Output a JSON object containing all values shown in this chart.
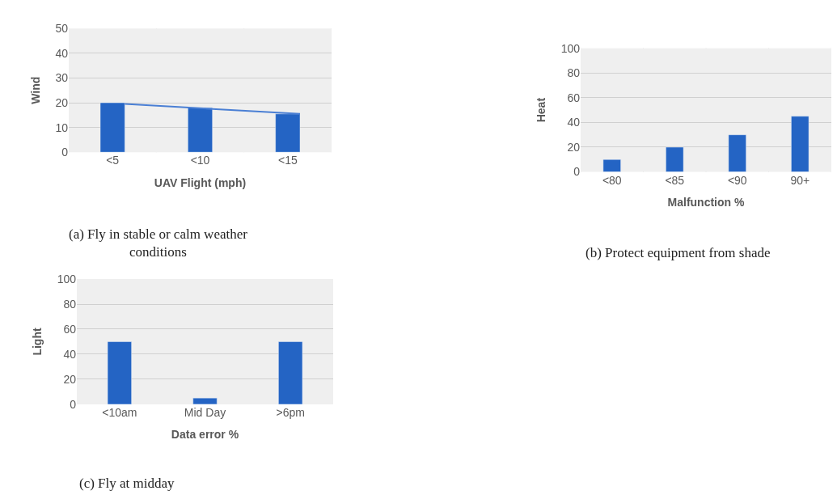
{
  "chart_data": [
    {
      "type": "bar",
      "xlabel": "UAV Flight (mph)",
      "ylabel": "Wind",
      "categories": [
        "<5",
        "<10",
        "<15"
      ],
      "series": [
        {
          "color": "#2464c4",
          "values": [
            20,
            18,
            15.5
          ]
        },
        {
          "type": "line",
          "color": "#4a7fd4",
          "values": [
            19.5,
            17.5,
            15.5
          ]
        }
      ],
      "ylim": [
        0,
        50
      ],
      "yticks": [
        0,
        10,
        20,
        30,
        40,
        50
      ],
      "grid": true,
      "annotations": [
        "(a) Fly in stable or calm weather conditions"
      ]
    },
    {
      "type": "bar",
      "xlabel": "Malfunction %",
      "ylabel": "Heat",
      "categories": [
        "<80",
        "<85",
        "<90",
        "90+"
      ],
      "series": [
        {
          "color": "#2464c4",
          "values": [
            10,
            20,
            30,
            45
          ]
        }
      ],
      "ylim": [
        0,
        100
      ],
      "yticks": [
        0,
        20,
        40,
        60,
        80,
        100
      ],
      "grid": true,
      "annotations": [
        "(b) Protect equipment from shade"
      ]
    },
    {
      "type": "bar",
      "xlabel": "Data error %",
      "ylabel": "Light",
      "categories": [
        "<10am",
        "Mid Day",
        ">6pm"
      ],
      "series": [
        {
          "color": "#2464c4",
          "values": [
            50,
            5,
            50
          ]
        }
      ],
      "ylim": [
        0,
        100
      ],
      "yticks": [
        0,
        20,
        40,
        60,
        80,
        100
      ],
      "grid": true,
      "annotations": [
        "(c) Fly at midday"
      ]
    }
  ]
}
